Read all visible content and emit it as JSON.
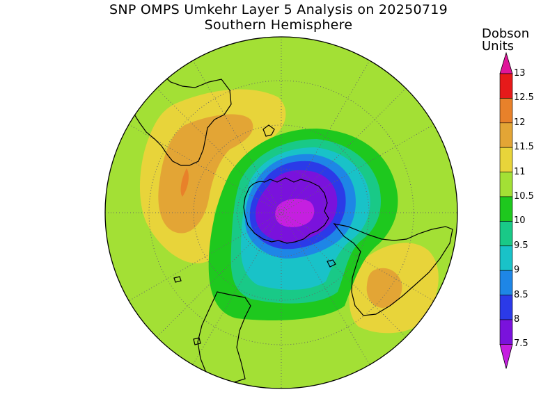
{
  "title": {
    "line1": "SNP OMPS Umkehr Layer 5 Analysis on 20250719",
    "line2": "Southern Hemisphere"
  },
  "colorbar": {
    "unit_line1": "Dobson",
    "unit_line2": "Units",
    "levels": [
      "13",
      "12.5",
      "12",
      "11.5",
      "11",
      "10.5",
      "10",
      "9.5",
      "9",
      "8.5",
      "8",
      "7.5"
    ],
    "colors": [
      "#e0159a",
      "#e61a1a",
      "#e8812a",
      "#e3a535",
      "#e8d43a",
      "#a3e035",
      "#1ec81e",
      "#19c987",
      "#19c2c8",
      "#1e86e6",
      "#2b3ae8",
      "#7a12dc",
      "#c51fe0"
    ]
  },
  "map": {
    "projection": "polar stereographic, South Pole",
    "background_color": "#a3e035",
    "field_labels": [
      {
        "region": "Antarctica",
        "level": "7.5"
      },
      {
        "region": "South America / Atlantic",
        "level": "11.5"
      },
      {
        "region": "Australia",
        "level": "11.5"
      }
    ]
  }
}
